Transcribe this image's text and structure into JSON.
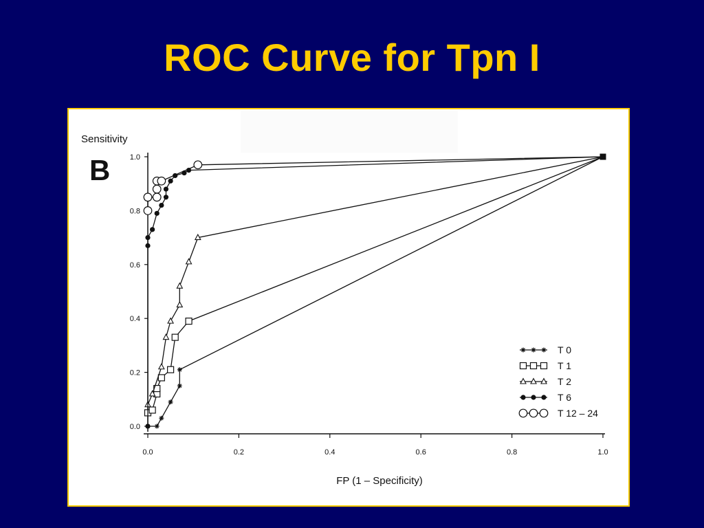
{
  "slide": {
    "title": "ROC Curve for Tpn I",
    "title_color": "#FFCC00",
    "background_color": "#000066"
  },
  "chart_data": {
    "type": "line",
    "panel_label": "B",
    "xlabel": "FP  (1 – Specificity)",
    "ylabel": "Sensitivity",
    "xlim": [
      0,
      1
    ],
    "ylim": [
      0,
      1
    ],
    "x_ticks": [
      {
        "value": 0,
        "label": "0.0"
      },
      {
        "value": 0.2,
        "label": "0.2"
      },
      {
        "value": 0.4,
        "label": "0.4"
      },
      {
        "value": 0.6,
        "label": "0.6"
      },
      {
        "value": 0.8,
        "label": "0.8"
      },
      {
        "value": 1.0,
        "label": "1.0"
      }
    ],
    "y_ticks": [
      {
        "value": 0,
        "label": "0.0"
      },
      {
        "value": 0.2,
        "label": "0.2"
      },
      {
        "value": 0.4,
        "label": "0.4"
      },
      {
        "value": 0.6,
        "label": "0.6"
      },
      {
        "value": 0.8,
        "label": "0.8"
      },
      {
        "value": 1.0,
        "label": "1.0"
      }
    ],
    "grid": false,
    "legend_position": "bottom-right",
    "series": [
      {
        "name": "T 0",
        "marker": "star",
        "points": [
          [
            0,
            0
          ],
          [
            0.02,
            0
          ],
          [
            0.03,
            0.03
          ],
          [
            0.05,
            0.09
          ],
          [
            0.07,
            0.15
          ],
          [
            0.07,
            0.21
          ],
          [
            1.0,
            1.0
          ]
        ]
      },
      {
        "name": "T 1",
        "marker": "square",
        "points": [
          [
            0,
            0.05
          ],
          [
            0.01,
            0.06
          ],
          [
            0.02,
            0.12
          ],
          [
            0.02,
            0.14
          ],
          [
            0.03,
            0.18
          ],
          [
            0.05,
            0.21
          ],
          [
            0.06,
            0.33
          ],
          [
            0.09,
            0.39
          ],
          [
            1.0,
            1.0
          ]
        ]
      },
      {
        "name": "T 2",
        "marker": "triangle",
        "points": [
          [
            0,
            0.08
          ],
          [
            0.01,
            0.12
          ],
          [
            0.03,
            0.22
          ],
          [
            0.04,
            0.33
          ],
          [
            0.05,
            0.39
          ],
          [
            0.07,
            0.45
          ],
          [
            0.07,
            0.52
          ],
          [
            0.09,
            0.61
          ],
          [
            0.11,
            0.7
          ],
          [
            1.0,
            1.0
          ]
        ]
      },
      {
        "name": "T 6",
        "marker": "filled-circle",
        "points": [
          [
            0,
            0
          ],
          [
            0,
            0.67
          ],
          [
            0,
            0.7
          ],
          [
            0.01,
            0.73
          ],
          [
            0.02,
            0.79
          ],
          [
            0.03,
            0.82
          ],
          [
            0.04,
            0.85
          ],
          [
            0.04,
            0.88
          ],
          [
            0.05,
            0.91
          ],
          [
            0.06,
            0.93
          ],
          [
            0.08,
            0.94
          ],
          [
            0.09,
            0.95
          ],
          [
            1.0,
            1.0
          ]
        ]
      },
      {
        "name": "T 12 – 24",
        "marker": "open-circle",
        "points": [
          [
            0,
            0.8
          ],
          [
            0,
            0.85
          ],
          [
            0.02,
            0.85
          ],
          [
            0.02,
            0.88
          ],
          [
            0.02,
            0.91
          ],
          [
            0.03,
            0.91
          ],
          [
            0.11,
            0.97
          ],
          [
            1.0,
            1.0
          ]
        ]
      }
    ]
  }
}
